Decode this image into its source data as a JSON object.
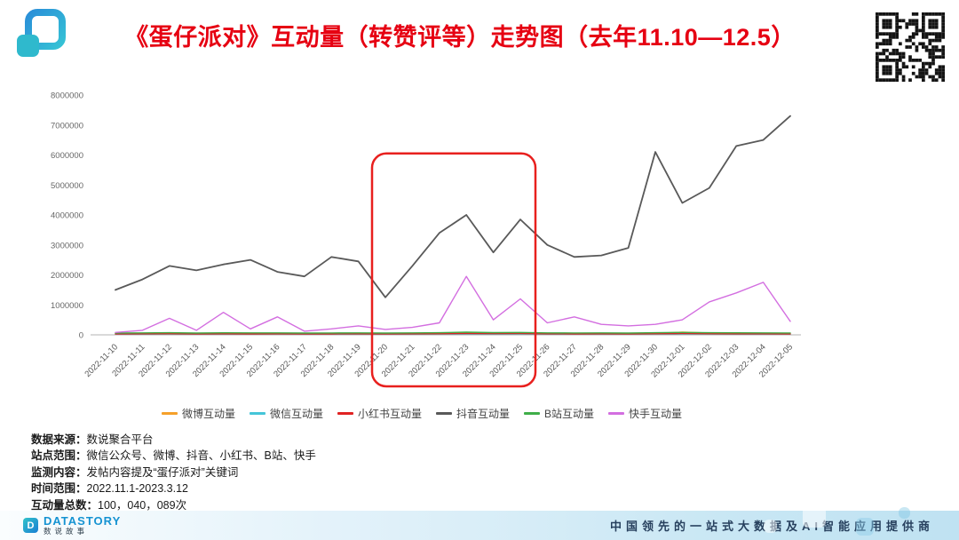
{
  "slide": {
    "title": "《蛋仔派对》互动量（转赞评等）走势图（去年11.10—12.5）"
  },
  "colors": {
    "title_red": "#e60012",
    "annotation_red": "#e8201e",
    "footer_brand_blue": "#1593d2"
  },
  "chart_data": {
    "type": "line",
    "title": "",
    "xlabel": "",
    "ylabel": "",
    "ylim": [
      0,
      8000000
    ],
    "ytick_interval": 1000000,
    "grid": false,
    "legend_position": "bottom",
    "x": [
      "2022-11-10",
      "2022-11-11",
      "2022-11-12",
      "2022-11-13",
      "2022-11-14",
      "2022-11-15",
      "2022-11-16",
      "2022-11-17",
      "2022-11-18",
      "2022-11-19",
      "2022-11-20",
      "2022-11-21",
      "2022-11-22",
      "2022-11-23",
      "2022-11-24",
      "2022-11-25",
      "2022-11-26",
      "2022-11-27",
      "2022-11-28",
      "2022-11-29",
      "2022-11-30",
      "2022-12-01",
      "2022-12-02",
      "2022-12-03",
      "2022-12-04",
      "2022-12-05"
    ],
    "series": [
      {
        "name": "微博互动量",
        "color": "#f5a02a",
        "emphasis": false,
        "values": [
          40000,
          50000,
          60000,
          40000,
          50000,
          45000,
          50000,
          40000,
          45000,
          50000,
          40000,
          45000,
          50000,
          60000,
          50000,
          55000,
          45000,
          40000,
          45000,
          40000,
          50000,
          90000,
          60000,
          50000,
          45000,
          40000
        ]
      },
      {
        "name": "微信互动量",
        "color": "#45c5d8",
        "emphasis": false,
        "values": [
          20000,
          22000,
          25000,
          20000,
          22000,
          21000,
          23000,
          20000,
          22000,
          21000,
          20000,
          22000,
          25000,
          30000,
          25000,
          28000,
          22000,
          20000,
          21000,
          20000,
          25000,
          28000,
          24000,
          22000,
          21000,
          20000
        ]
      },
      {
        "name": "小红书互动量",
        "color": "#e02222",
        "emphasis": false,
        "values": [
          30000,
          32000,
          35000,
          30000,
          33000,
          31000,
          32000,
          30000,
          31000,
          32000,
          30000,
          32000,
          36000,
          45000,
          38000,
          40000,
          33000,
          31000,
          32000,
          30000,
          36000,
          40000,
          35000,
          33000,
          32000,
          30000
        ]
      },
      {
        "name": "抖音互动量",
        "color": "#595959",
        "emphasis": true,
        "values": [
          1500000,
          1850000,
          2300000,
          2150000,
          2350000,
          2500000,
          2100000,
          1950000,
          2600000,
          2450000,
          1250000,
          2300000,
          3400000,
          4000000,
          2750000,
          3850000,
          3000000,
          2600000,
          2650000,
          2900000,
          6100000,
          4400000,
          4900000,
          6300000,
          6500000,
          7300000
        ]
      },
      {
        "name": "B站互动量",
        "color": "#3fae49",
        "emphasis": false,
        "values": [
          60000,
          65000,
          70000,
          60000,
          68000,
          64000,
          66000,
          60000,
          63000,
          65000,
          60000,
          64000,
          70000,
          90000,
          75000,
          80000,
          66000,
          62000,
          64000,
          60000,
          70000,
          80000,
          72000,
          68000,
          66000,
          62000
        ]
      },
      {
        "name": "快手互动量",
        "color": "#d36ee0",
        "emphasis": false,
        "values": [
          80000,
          150000,
          550000,
          150000,
          750000,
          200000,
          600000,
          120000,
          200000,
          300000,
          180000,
          250000,
          400000,
          1950000,
          500000,
          1200000,
          400000,
          600000,
          350000,
          300000,
          350000,
          500000,
          1100000,
          1400000,
          1750000,
          450000
        ]
      }
    ],
    "annotation": {
      "type": "red-box",
      "x_start": "2022-11-20",
      "x_end": "2022-11-25",
      "y_top": 6050000,
      "color": "#e8201e"
    }
  },
  "info": {
    "lines": [
      {
        "label": "数据来源：",
        "value": "数说聚合平台"
      },
      {
        "label": "站点范围：",
        "value": "微信公众号、微博、抖音、小红书、B站、快手"
      },
      {
        "label": "监测内容：",
        "value": "发帖内容提及“蛋仔派对”关键词"
      },
      {
        "label": "时间范围：",
        "value": "2022.11.1-2023.3.12"
      },
      {
        "label": "互动量总数：",
        "value": "100，040，089次"
      }
    ]
  },
  "footer": {
    "brand": "DATASTORY",
    "brand_sub": "数说故事",
    "tagline": "中国领先的一站式大数据及AI智能应用提供商"
  }
}
